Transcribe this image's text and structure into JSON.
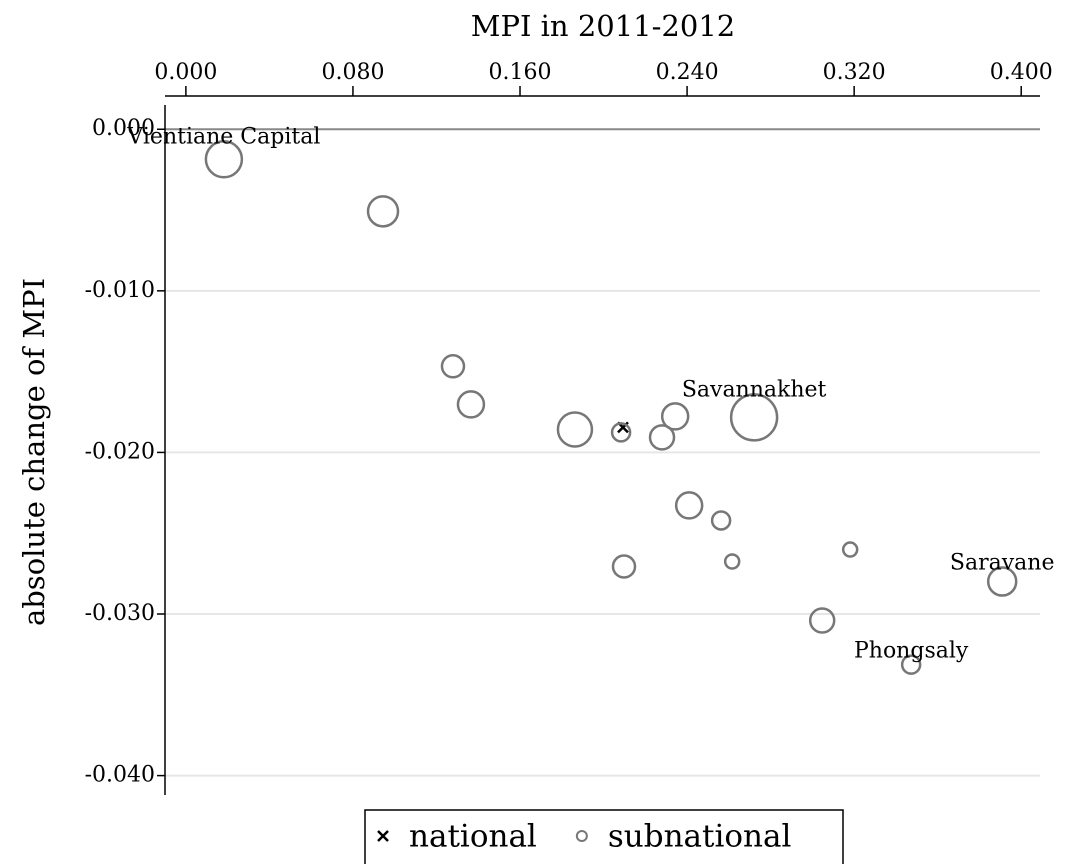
{
  "chart_data": {
    "type": "scatter",
    "x_label": "MPI in 2011-2012",
    "y_label": "absolute change of MPI",
    "xlim": [
      -0.01,
      0.409
    ],
    "ylim": [
      -0.0412,
      0.0015
    ],
    "xticks": [
      {
        "value": 0,
        "label": "0.000"
      },
      {
        "value": 0.08,
        "label": "0.080"
      },
      {
        "value": 0.16,
        "label": "0.160"
      },
      {
        "value": 0.24,
        "label": "0.240"
      },
      {
        "value": 0.32,
        "label": "0.320"
      },
      {
        "value": 0.4,
        "label": "0.400"
      }
    ],
    "yticks": [
      {
        "value": 0,
        "label": "0.000"
      },
      {
        "value": -0.01,
        "label": "-0.010"
      },
      {
        "value": -0.02,
        "label": "-0.020"
      },
      {
        "value": -0.03,
        "label": "-0.030"
      },
      {
        "value": -0.04,
        "label": "-0.040"
      }
    ],
    "grid": true,
    "legend": "bottom",
    "series": [
      {
        "name": "national",
        "color": "#000000",
        "marker": "x",
        "x": [
          0.2093
        ],
        "values": [
          -0.01845
        ]
      },
      {
        "name": "subnational",
        "color": "#777777",
        "marker": "circle",
        "x": [
          0.0182,
          0.0944,
          0.1279,
          0.1365,
          0.1863,
          0.2084,
          0.228,
          0.2343,
          0.2721,
          0.241,
          0.2563,
          0.2098,
          0.2616,
          0.3181,
          0.3047,
          0.3909,
          0.3473
        ],
        "values": [
          -0.00186,
          -0.00508,
          -0.01467,
          -0.01703,
          -0.01858,
          -0.01876,
          -0.01907,
          -0.01777,
          -0.01783,
          -0.02328,
          -0.02421,
          -0.02706,
          -0.02675,
          -0.02601,
          -0.0304,
          -0.02799,
          -0.03313
        ],
        "sizes": [
          18,
          15,
          11,
          13,
          17,
          9,
          12,
          13,
          23,
          13,
          9,
          11,
          7,
          7,
          12,
          14,
          9
        ],
        "labels": [
          "Vientiane Capital",
          null,
          null,
          null,
          null,
          null,
          null,
          null,
          "Savannakhet",
          null,
          null,
          null,
          null,
          null,
          null,
          "Saravane",
          "Phongsaly"
        ]
      }
    ]
  }
}
